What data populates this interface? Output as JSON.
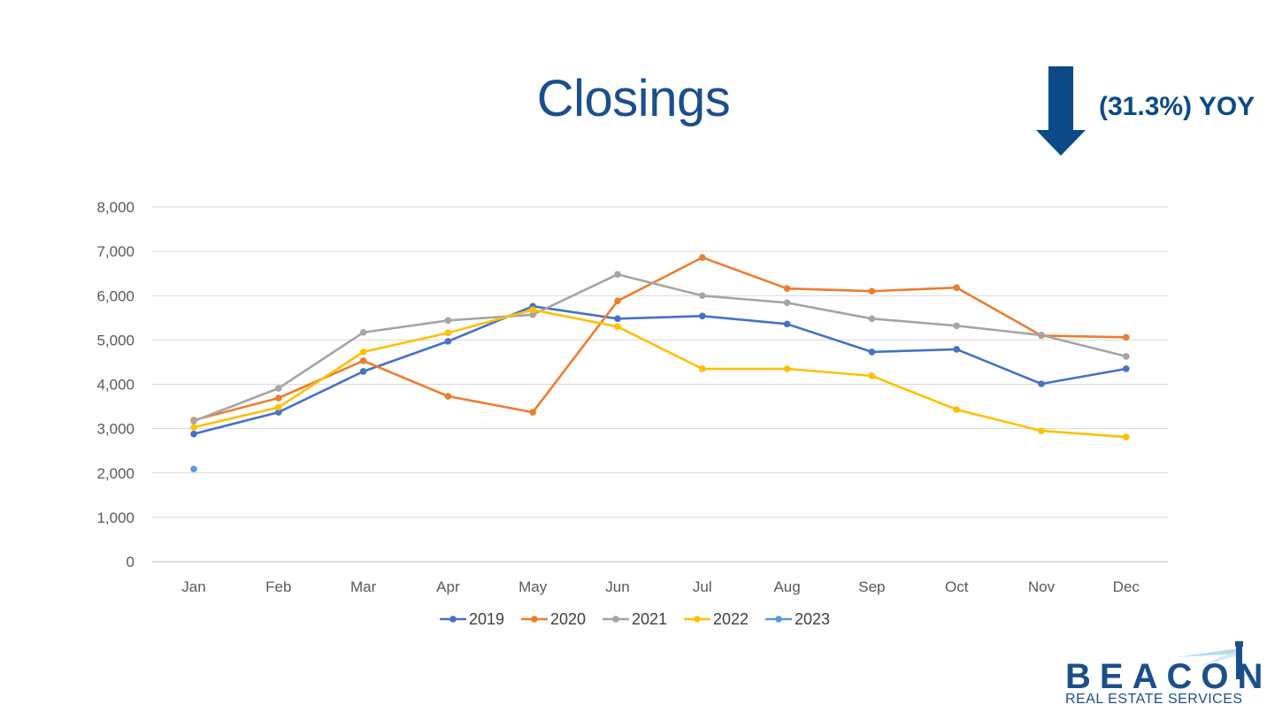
{
  "slide": {
    "title": "Closings",
    "yoy_label": "(31.3%) YOY",
    "arrow_icon": "down-arrow-icon",
    "colors": {
      "title": "#1b4f8a",
      "arrow": "#0b4a86"
    }
  },
  "logo": {
    "word": "BEACON",
    "subtitle": "REAL ESTATE SERVICES",
    "icon": "lighthouse-beam-icon"
  },
  "chart_data": {
    "type": "line",
    "categories": [
      "Jan",
      "Feb",
      "Mar",
      "Apr",
      "May",
      "Jun",
      "Jul",
      "Aug",
      "Sep",
      "Oct",
      "Nov",
      "Dec"
    ],
    "y_ticks": [
      "0",
      "1,000",
      "2,000",
      "3,000",
      "4,000",
      "5,000",
      "6,000",
      "7,000",
      "8,000"
    ],
    "ylim": [
      0,
      8000
    ],
    "grid": true,
    "legend_position": "bottom",
    "series": [
      {
        "name": "2019",
        "color": "#4472c4",
        "values": [
          2880,
          3370,
          4290,
          4970,
          5760,
          5480,
          5540,
          5360,
          4730,
          4790,
          4010,
          4350
        ]
      },
      {
        "name": "2020",
        "color": "#ed7d31",
        "values": [
          3190,
          3690,
          4530,
          3730,
          3370,
          5880,
          6860,
          6160,
          6100,
          6180,
          5100,
          5060
        ]
      },
      {
        "name": "2021",
        "color": "#a5a5a5",
        "values": [
          3170,
          3910,
          5170,
          5440,
          5570,
          6480,
          6000,
          5840,
          5480,
          5320,
          5110,
          4630
        ]
      },
      {
        "name": "2022",
        "color": "#ffc000",
        "values": [
          3030,
          3480,
          4730,
          5160,
          5680,
          5300,
          4350,
          4350,
          4190,
          3430,
          2950,
          2810
        ]
      },
      {
        "name": "2023",
        "color": "#5b9bd5",
        "values": [
          2090,
          null,
          null,
          null,
          null,
          null,
          null,
          null,
          null,
          null,
          null,
          null
        ]
      }
    ]
  }
}
